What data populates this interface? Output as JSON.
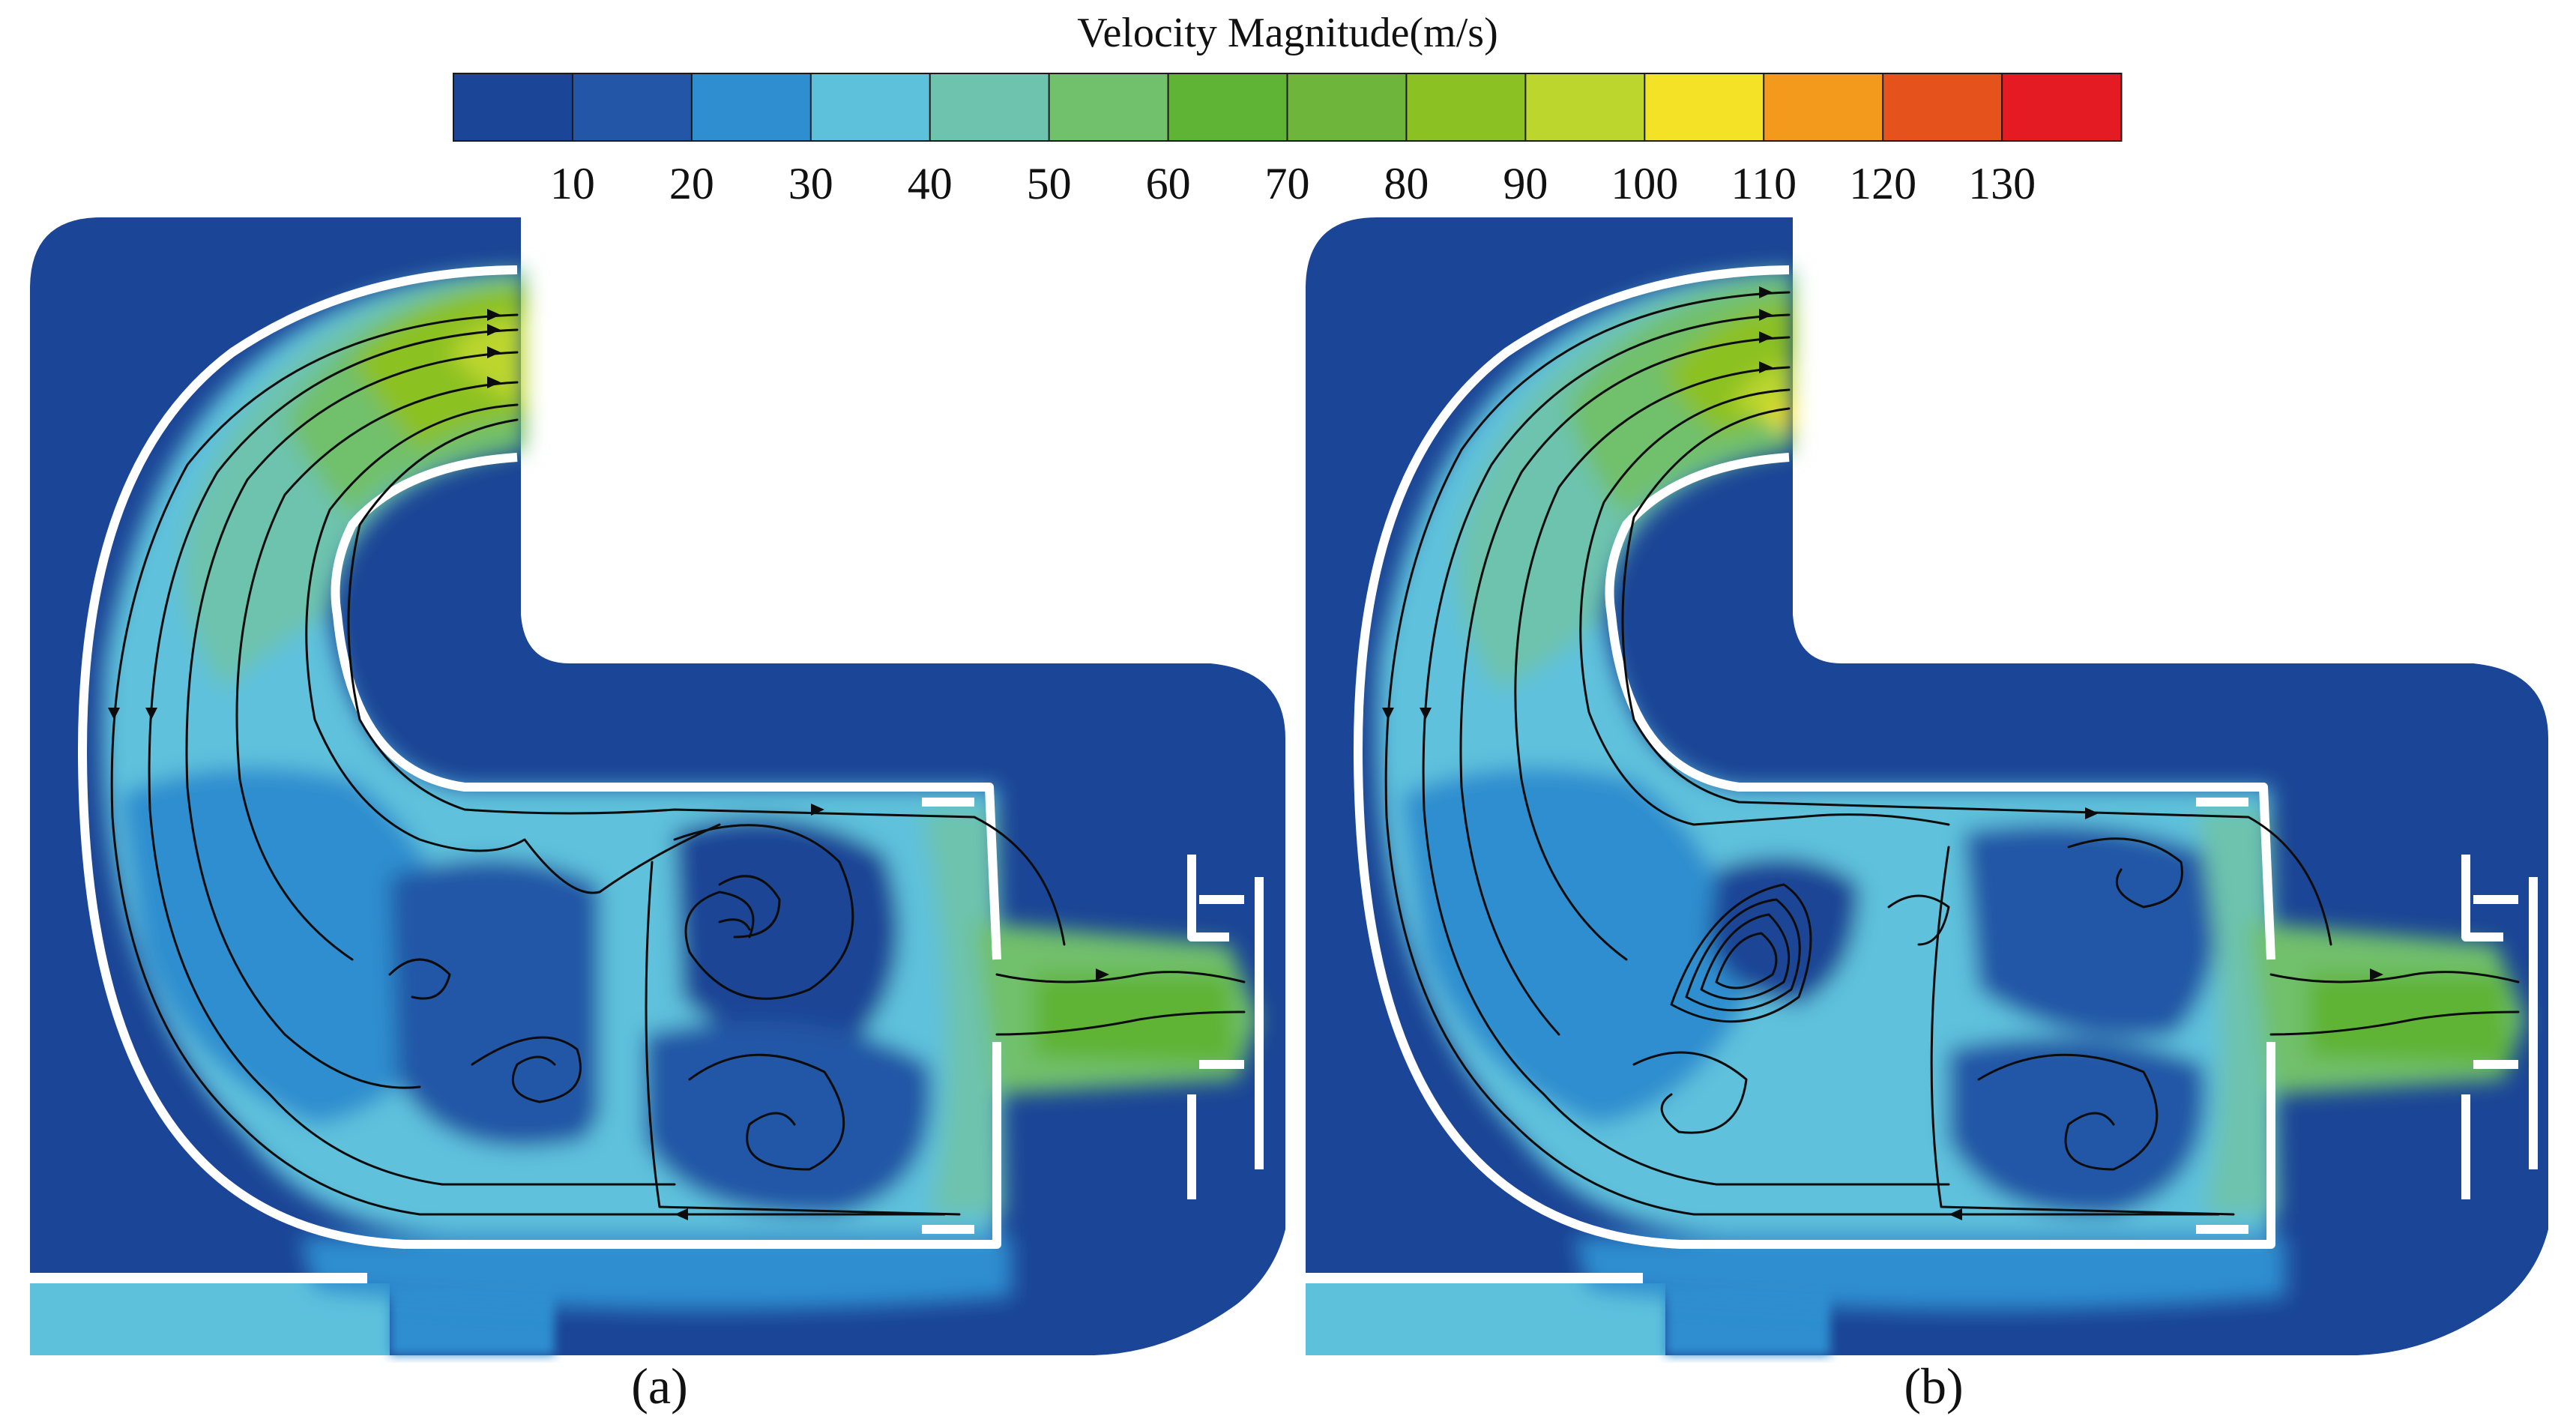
{
  "colorbar": {
    "title": "Velocity Magnitude(m/s)",
    "tick_labels": [
      "10",
      "20",
      "30",
      "40",
      "50",
      "60",
      "70",
      "80",
      "90",
      "100",
      "110",
      "120",
      "130"
    ],
    "colors": [
      "#1b4596",
      "#2356a6",
      "#2e8ecf",
      "#5ec1dc",
      "#6dc3ad",
      "#71c06c",
      "#5fb436",
      "#6db53b",
      "#8cc124",
      "#bcd62d",
      "#f3e226",
      "#f39a1c",
      "#e6521c",
      "#e41b22"
    ]
  },
  "colors": {
    "background_field": "#1b4596",
    "wall": "#ffffff",
    "streamline": "#0c0c0c"
  },
  "panels": [
    {
      "label": "(a)"
    },
    {
      "label": "(b)"
    }
  ]
}
